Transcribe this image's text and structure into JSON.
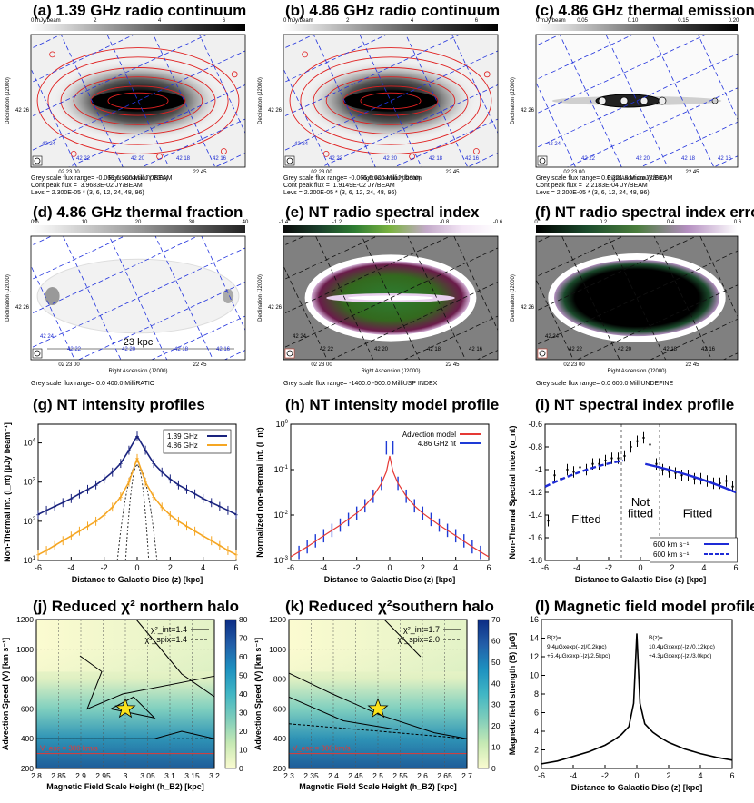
{
  "panels": {
    "a": {
      "title": "(a) 1.39 GHz radio continuum",
      "cbar_unit": "0 mJy/beam",
      "cbar_ticks": [
        "2",
        "4",
        "6"
      ],
      "cap1": "Grey scale flux range= -0.069 6.900 MilliJY/BEAM",
      "cap2": "Cont peak flux =  3.9683E-02 JY/BEAM",
      "cap3": "Levs = 2.300E-05 * (3, 6, 12, 24, 48, 96)"
    },
    "b": {
      "title": "(b) 4.86 GHz radio continuum",
      "cbar_unit": "0 mJy/beam",
      "cbar_ticks": [
        "2",
        "4",
        "6"
      ],
      "cap1": "Grey scale flux range= -0.066 6.600 MilliJy/beam",
      "cap2": "Cont peak flux =  1.9149E-02 JY/BEAM",
      "cap3": "Levs = 2.200E-05 * (3, 6, 12, 24, 48, 96)"
    },
    "c": {
      "title": "(c) 4.86 GHz thermal emission",
      "cbar_unit": "0 mJy/beam",
      "cbar_ticks": [
        "0.05",
        "0.10",
        "0.15",
        "0.20"
      ],
      "cap1": "Grey scale flux range= 0.0 221.8 MicroJY/BEAM",
      "cap2": "Cont peak flux =  2.2183E-04 JY/BEAM",
      "cap3": "Levs = 2.200E-05 * (3, 6, 12, 24, 48, 96)"
    },
    "d": {
      "title": "(d) 4.86 GHz thermal fraction",
      "cbar_unit": "0%",
      "cbar_ticks": [
        "10",
        "20",
        "30",
        "40"
      ],
      "cap1": "Grey scale flux range= 0.0 400.0 MilliRATIO",
      "scale_label": "23 kpc"
    },
    "e": {
      "title": "(e) NT radio spectral index",
      "cbar_ticks": [
        "-1.4",
        "-1.2",
        "-1.0",
        "-0.8",
        "-0.6"
      ],
      "cap1": "Grey scale flux range= -1400.0 -500.0 MilliUSP INDEX"
    },
    "f": {
      "title": "(f) NT radio spectral index error",
      "cbar_ticks": [
        "0",
        "0.2",
        "0.4",
        "0.6"
      ],
      "cap1": "Grey scale flux range= 0.0 600.0 MilliUNDEFINE"
    },
    "g": {
      "title": "(g) NT intensity profiles"
    },
    "h": {
      "title": "(h) NT intensity model profile"
    },
    "i": {
      "title": "(i) NT spectral index profile"
    },
    "j": {
      "title": "(j) Reduced χ² northern halo"
    },
    "k": {
      "title": "(k) Reduced χ²southern halo"
    },
    "l": {
      "title": "(l) Magnetic field model profile"
    }
  },
  "map_axes": {
    "ylabel": "Declination (J2000)",
    "xlabel": "Right Ascension (J2000)",
    "dec_tick": "42 26",
    "ra_ticks": [
      "02 23 00",
      "22 45"
    ],
    "dec_labels": [
      "42 24",
      "42 22",
      "42 20",
      "42 18",
      "42 16"
    ]
  },
  "chart_data": [
    {
      "id": "g",
      "type": "line",
      "xlabel": "Distance to Galactic Disc (z) [kpc]",
      "ylabel": "Non-Thermal Int. (I_nt) [μJy beam⁻¹]",
      "xlim": [
        -6,
        6
      ],
      "ylim": [
        10,
        30000
      ],
      "yscale": "log",
      "xticks": [
        "-6",
        "-4",
        "-2",
        "0",
        "2",
        "4",
        "6"
      ],
      "series": [
        {
          "name": "1.39 GHz",
          "color": "#1a237e",
          "x": [
            -6,
            -5.5,
            -5,
            -4.5,
            -4,
            -3.5,
            -3,
            -2.5,
            -2,
            -1.5,
            -1,
            -0.5,
            0,
            0.5,
            1,
            1.5,
            2,
            2.5,
            3,
            3.5,
            4,
            4.5,
            5,
            5.5,
            6
          ],
          "y": [
            150,
            190,
            240,
            300,
            380,
            500,
            650,
            850,
            1200,
            1800,
            3000,
            6500,
            15000,
            6500,
            3000,
            1800,
            1200,
            850,
            650,
            500,
            380,
            300,
            240,
            190,
            150
          ]
        },
        {
          "name": "4.86 GHz",
          "color": "#f5a623",
          "x": [
            -6,
            -5.5,
            -5,
            -4.5,
            -4,
            -3.5,
            -3,
            -2.5,
            -2,
            -1.5,
            -1,
            -0.5,
            0,
            0.5,
            1,
            1.5,
            2,
            2.5,
            3,
            3.5,
            4,
            4.5,
            5,
            5.5,
            6
          ],
          "y": [
            14,
            18,
            24,
            32,
            42,
            56,
            75,
            100,
            145,
            230,
            420,
            1000,
            4000,
            1000,
            420,
            230,
            145,
            100,
            75,
            56,
            42,
            32,
            24,
            18,
            14
          ]
        }
      ]
    },
    {
      "id": "h",
      "type": "line",
      "xlabel": "Distance to Galactic Disc (z) [kpc]",
      "ylabel": "Normalized non-thermal int. (I_nt)",
      "xlim": [
        -6,
        6
      ],
      "ylim": [
        0.001,
        1
      ],
      "yscale": "log",
      "xticks": [
        "-6",
        "-4",
        "-2",
        "0",
        "2",
        "4",
        "6"
      ],
      "series": [
        {
          "name": "Advection model",
          "color": "#e53935",
          "x": [
            -6,
            -5,
            -4,
            -3,
            -2,
            -1.5,
            -1,
            -0.5,
            -0.2,
            0,
            0.2,
            0.5,
            1,
            1.5,
            2,
            3,
            4,
            5,
            6
          ],
          "y": [
            0.0012,
            0.002,
            0.0035,
            0.006,
            0.011,
            0.016,
            0.026,
            0.05,
            0.09,
            0.2,
            0.09,
            0.05,
            0.026,
            0.016,
            0.011,
            0.006,
            0.0035,
            0.002,
            0.0012
          ]
        },
        {
          "name": "4.86 GHz fit",
          "color": "#1e3bd6",
          "x": [
            -5.5,
            -5,
            -4.5,
            -4,
            -3.5,
            -3,
            -2.5,
            -2,
            -1.5,
            -1,
            -0.5,
            -0.2,
            0.2,
            0.5,
            1,
            1.5,
            2,
            2.5,
            3,
            3.5,
            4,
            4.5,
            5,
            5.5
          ],
          "y": [
            0.0015,
            0.002,
            0.0027,
            0.0035,
            0.0046,
            0.006,
            0.008,
            0.011,
            0.016,
            0.026,
            0.05,
            0.3,
            0.3,
            0.05,
            0.026,
            0.016,
            0.011,
            0.008,
            0.006,
            0.0046,
            0.0035,
            0.0027,
            0.002,
            0.0015
          ]
        }
      ]
    },
    {
      "id": "i",
      "type": "scatter",
      "xlabel": "Distance to Galactic Disc (z) [kpc]",
      "ylabel": "Non-Thermal Spectral Index (α_nt)",
      "xlim": [
        -6,
        6
      ],
      "ylim": [
        -1.8,
        -0.6
      ],
      "xticks": [
        "-6",
        "-4",
        "-2",
        "0",
        "2",
        "4",
        "6"
      ],
      "yticks": [
        "-1.8",
        "-1.6",
        "-1.4",
        "-1.2",
        "-1",
        "-0.8",
        "-0.6"
      ],
      "points_x": [
        -5.8,
        -5.4,
        -5,
        -4.6,
        -4.2,
        -3.8,
        -3.4,
        -3,
        -2.6,
        -2.2,
        -1.8,
        -1.4,
        -1,
        -0.6,
        -0.2,
        0.2,
        0.6,
        1,
        1.4,
        1.8,
        2.2,
        2.6,
        3,
        3.4,
        3.8,
        4.2,
        4.6,
        5,
        5.4,
        5.8
      ],
      "points_y": [
        -1.45,
        -1.05,
        -1.08,
        -1.0,
        -1.02,
        -0.98,
        -1.0,
        -0.95,
        -0.95,
        -0.92,
        -0.9,
        -0.9,
        -0.88,
        -0.8,
        -0.75,
        -0.72,
        -0.78,
        -0.95,
        -1.0,
        -1.02,
        -1.03,
        -1.05,
        -1.05,
        -1.08,
        -1.08,
        -1.1,
        -1.12,
        -1.12,
        -1.1,
        -1.15
      ],
      "labels": {
        "left": "Fitted",
        "middle": "Not\nfitted",
        "right": "Fitted"
      },
      "legend": [
        "600 km s⁻¹",
        "600 km s⁻¹"
      ]
    },
    {
      "id": "j",
      "type": "heatmap",
      "xlabel": "Magnetic Field Scale Height (h_B2) [kpc]",
      "ylabel": "Advection Speed (V) [km s⁻¹]",
      "xlim": [
        2.8,
        3.2
      ],
      "ylim": [
        200,
        1200
      ],
      "xticks": [
        "2.8",
        "2.85",
        "2.9",
        "2.95",
        "3",
        "3.05",
        "3.1",
        "3.15",
        "3.2"
      ],
      "yticks": [
        "200",
        "400",
        "600",
        "800",
        "1000",
        "1200"
      ],
      "cbar": [
        0,
        80
      ],
      "cbar_ticks": [
        "0",
        "10",
        "20",
        "30",
        "40",
        "50",
        "60",
        "70",
        "80"
      ],
      "best": [
        3.0,
        600
      ],
      "vesc_label": "V_esc = 300 km/s",
      "legend": [
        "χ²_int=1.4",
        "χ²_spix=1.4"
      ]
    },
    {
      "id": "k",
      "type": "heatmap",
      "xlabel": "Magnetic Field Scale Height (h_B2) [kpc]",
      "ylabel": "Advection Speed (V) [km s⁻¹]",
      "xlim": [
        2.3,
        2.7
      ],
      "ylim": [
        200,
        1200
      ],
      "xticks": [
        "2.3",
        "2.35",
        "2.4",
        "2.45",
        "2.5",
        "2.55",
        "2.6",
        "2.65",
        "2.7"
      ],
      "yticks": [
        "200",
        "400",
        "600",
        "800",
        "1000",
        "1200"
      ],
      "cbar": [
        0,
        70
      ],
      "cbar_ticks": [
        "0",
        "10",
        "20",
        "30",
        "40",
        "50",
        "60",
        "70"
      ],
      "best": [
        2.5,
        600
      ],
      "vesc_label": "V_esc = 300 km/s",
      "legend": [
        "χ²_int=1.7",
        "χ²_spix=2.0"
      ]
    },
    {
      "id": "l",
      "type": "line",
      "xlabel": "Distance to Galactic Disc (z) [kpc]",
      "ylabel": "Magnetic field strength (B) [μG]",
      "xlim": [
        -6,
        6
      ],
      "ylim": [
        0,
        16
      ],
      "xticks": [
        "-6",
        "-4",
        "-2",
        "0",
        "2",
        "4",
        "6"
      ],
      "yticks": [
        "0",
        "2",
        "4",
        "6",
        "8",
        "10",
        "12",
        "14",
        "16"
      ],
      "x": [
        -6,
        -5,
        -4,
        -3,
        -2,
        -1.5,
        -1,
        -0.5,
        -0.2,
        0,
        0.2,
        0.5,
        1,
        1.5,
        2,
        3,
        4,
        5,
        6
      ],
      "y": [
        0.5,
        0.8,
        1.3,
        1.8,
        2.5,
        3.0,
        3.6,
        4.5,
        7.0,
        14.5,
        7.0,
        4.8,
        3.9,
        3.3,
        2.8,
        2.1,
        1.6,
        1.2,
        0.9
      ],
      "ann_left": [
        "B(z)=",
        "9.4μGxexp(-|z|/0.2kpc)",
        "+5.4μGxexp(-|z|/2.5kpc)"
      ],
      "ann_right": [
        "B(z)=",
        "10.4μGxexp(-|z|/0.12kpc)",
        "+4.3μGxexp(-|z|/3.0kpc)"
      ]
    }
  ]
}
